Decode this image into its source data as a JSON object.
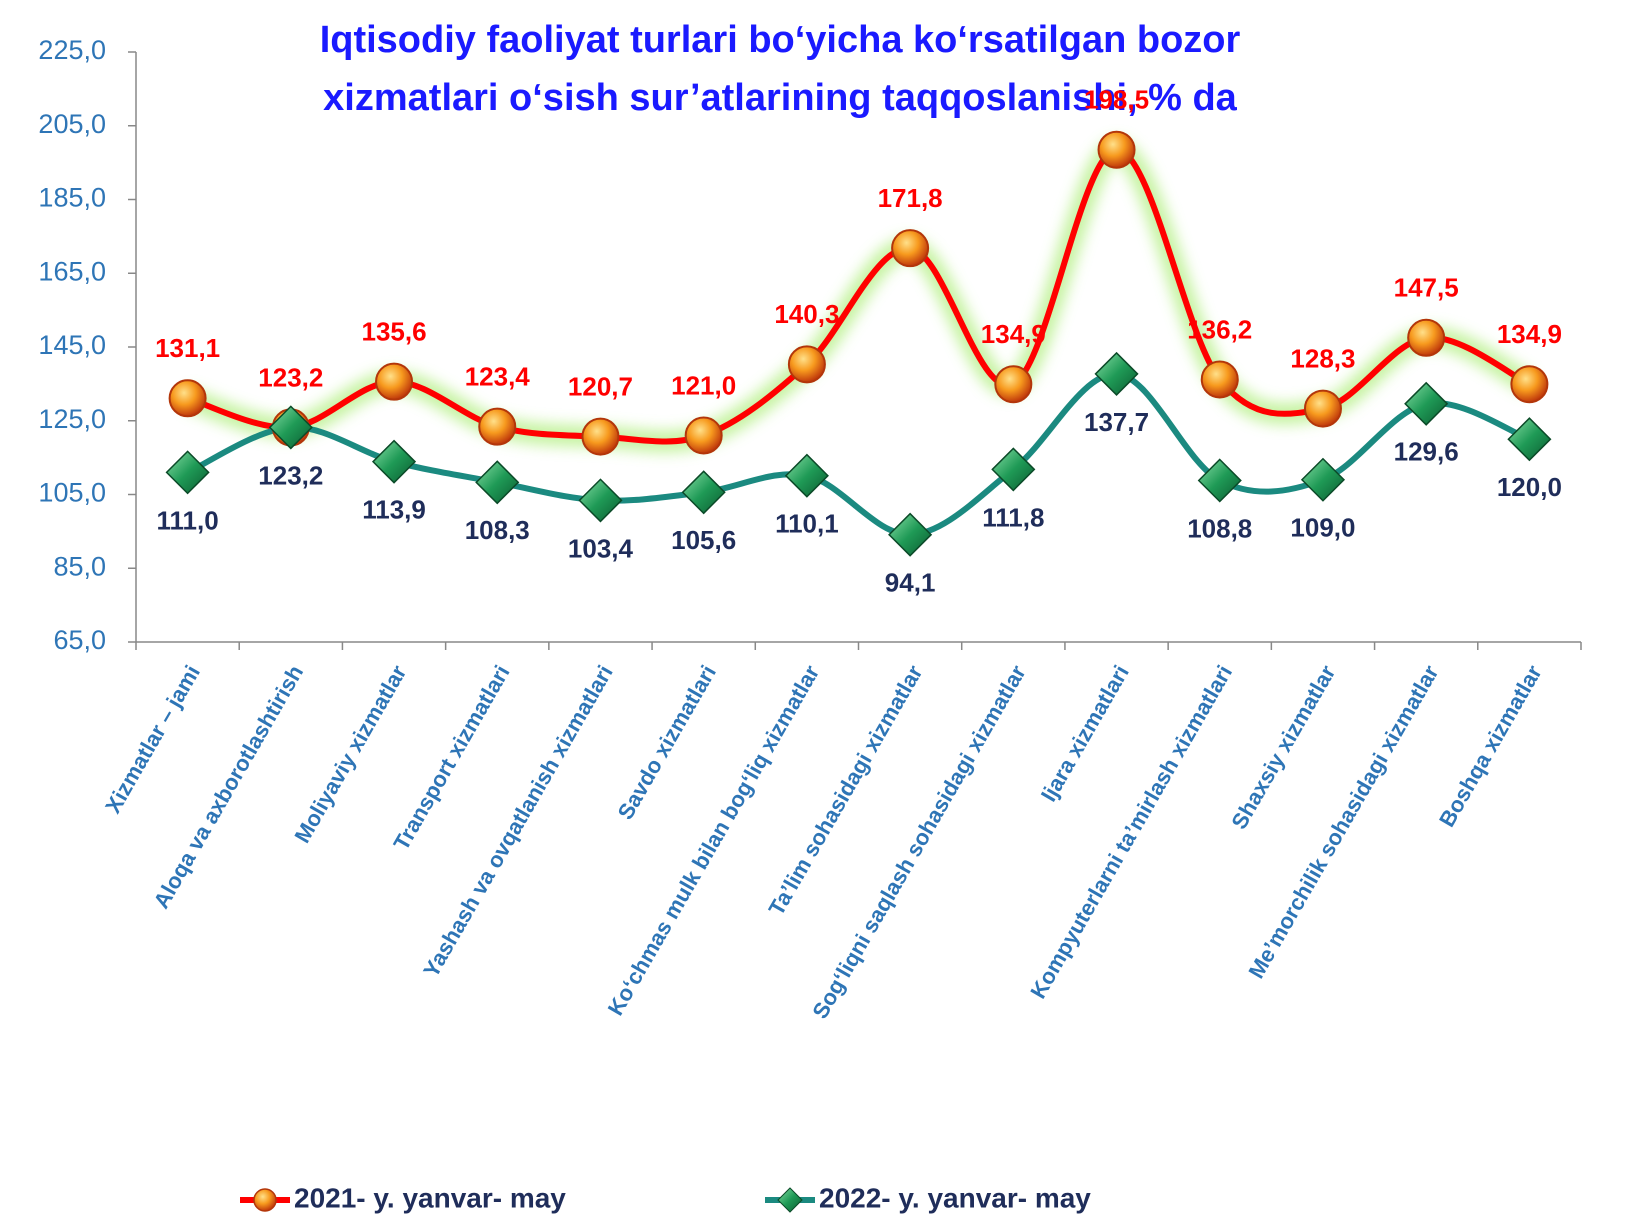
{
  "chart_data": {
    "type": "line",
    "title": [
      "Iqtisodiy faoliyat turlari bo‘yicha ko‘rsatilgan bozor",
      "xizmatlari o‘sish sur’atlarining taqqoslanishi, % da"
    ],
    "categories": [
      "Xizmatlar – jami",
      "Aloqa va axborotlashtirish",
      "Moliyaviy xizmatlar",
      "Transport xizmatlari",
      "Yashash va ovqatlanish xizmatlari",
      "Savdo xizmatlari",
      "Ko‘chmas mulk bilan bog‘liq xizmatlar",
      "Ta’lim sohasidagi xizmatlar",
      "Sog‘liqni saqlash sohasidagi xizmatlar",
      "Ijara xizmatlari",
      "Kompyuterlarni ta’mirlash xizmatlari",
      "Shaxsiy xizmatlar",
      "Me’morchilik sohasidagi xizmatlar",
      "Boshqa xizmatlar"
    ],
    "series": [
      {
        "name": "2021- y. yanvar- may",
        "color": "#ff0000",
        "values": [
          131.1,
          123.2,
          135.6,
          123.4,
          120.7,
          121.0,
          140.3,
          171.8,
          134.9,
          198.5,
          136.2,
          128.3,
          147.5,
          134.9
        ],
        "value_labels": [
          "131,1",
          "123,2",
          "135,6",
          "123,4",
          "120,7",
          "121,0",
          "140,3",
          "171,8",
          "134,9",
          "198,5",
          "136,2",
          "128,3",
          "147,5",
          "134,9"
        ]
      },
      {
        "name": "2022- y. yanvar- may",
        "color": "#1b8a80",
        "values": [
          111.0,
          123.2,
          113.9,
          108.3,
          103.4,
          105.6,
          110.1,
          94.1,
          111.8,
          137.7,
          108.8,
          109.0,
          129.6,
          120.0
        ],
        "value_labels": [
          "111,0",
          "123,2",
          "113,9",
          "108,3",
          "103,4",
          "105,6",
          "110,1",
          "94,1",
          "111,8",
          "137,7",
          "108,8",
          "109,0",
          "129,6",
          "120,0"
        ]
      }
    ],
    "ylim": [
      65,
      225
    ],
    "yticks": [
      {
        "value": 65,
        "label": "65,0"
      },
      {
        "value": 85,
        "label": "85,0"
      },
      {
        "value": 105,
        "label": "105,0"
      },
      {
        "value": 125,
        "label": "125,0"
      },
      {
        "value": 145,
        "label": "145,0"
      },
      {
        "value": 165,
        "label": "165,0"
      },
      {
        "value": 185,
        "label": "185,0"
      },
      {
        "value": 205,
        "label": "205,0"
      },
      {
        "value": 225,
        "label": "225,0"
      }
    ],
    "legend": "bottom"
  }
}
